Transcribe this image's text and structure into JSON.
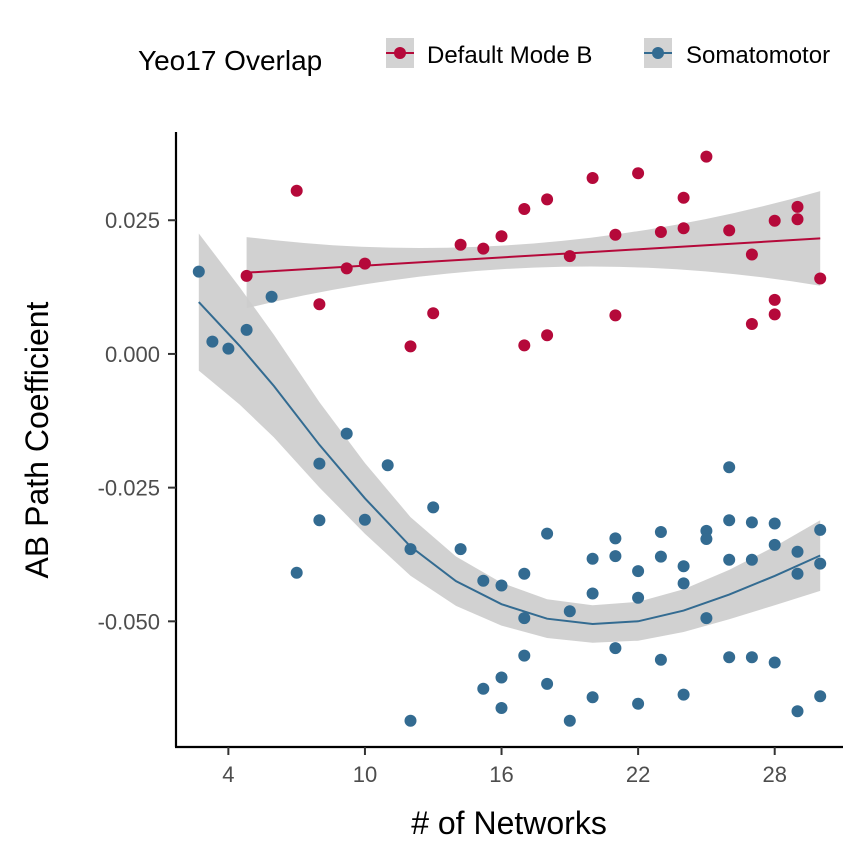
{
  "chart_data": {
    "type": "scatter",
    "xlabel": "# of Networks",
    "ylabel": "AB Path Coefficient",
    "xlim": [
      1.7,
      31.0
    ],
    "ylim": [
      -0.0735,
      0.0415
    ],
    "xticks": [
      4,
      10,
      16,
      22,
      28
    ],
    "xtick_labels": [
      "4",
      "10",
      "16",
      "22",
      "28"
    ],
    "yticks": [
      0.025,
      0.0,
      -0.025,
      -0.05
    ],
    "ytick_labels": [
      "0.025",
      "0.000",
      "-0.025",
      "-0.050"
    ],
    "grid": false,
    "legend": {
      "title": "Yeo17 Overlap",
      "position": "top",
      "entries": [
        "Default Mode B",
        "Somatomotor"
      ]
    },
    "series": [
      {
        "name": "Default Mode B",
        "color": "#b5093a",
        "points": [
          [
            4.8,
            0.0146
          ],
          [
            7.0,
            0.0305
          ],
          [
            8.0,
            0.0093
          ],
          [
            9.2,
            0.016
          ],
          [
            10.0,
            0.0169
          ],
          [
            12.0,
            0.0014
          ],
          [
            13.0,
            0.0076
          ],
          [
            14.2,
            0.0204
          ],
          [
            15.2,
            0.0197
          ],
          [
            16.0,
            0.022
          ],
          [
            17.0,
            0.0271
          ],
          [
            17.0,
            0.0016
          ],
          [
            18.0,
            0.0289
          ],
          [
            18.0,
            0.0035
          ],
          [
            19.0,
            0.0183
          ],
          [
            20.0,
            0.0329
          ],
          [
            21.0,
            0.0223
          ],
          [
            21.0,
            0.0072
          ],
          [
            22.0,
            0.0338
          ],
          [
            23.0,
            0.0228
          ],
          [
            24.0,
            0.0292
          ],
          [
            24.0,
            0.0235
          ],
          [
            25.0,
            0.0369
          ],
          [
            26.0,
            0.0231
          ],
          [
            27.0,
            0.0186
          ],
          [
            27.0,
            0.0056
          ],
          [
            28.0,
            0.0249
          ],
          [
            28.0,
            0.0101
          ],
          [
            28.0,
            0.0074
          ],
          [
            29.0,
            0.0275
          ],
          [
            29.0,
            0.0252
          ],
          [
            30.0,
            0.0141
          ]
        ],
        "trend": {
          "from": 4.8,
          "to": 30.0,
          "y_start": 0.0152,
          "y_end": 0.0216
        }
      },
      {
        "name": "Somatomotor",
        "color": "#336b91",
        "points": [
          [
            2.7,
            0.0154
          ],
          [
            3.3,
            0.0023
          ],
          [
            4.0,
            0.001
          ],
          [
            4.8,
            0.0045
          ],
          [
            5.9,
            0.0107
          ],
          [
            7.0,
            -0.0409
          ],
          [
            8.0,
            -0.0205
          ],
          [
            8.0,
            -0.0311
          ],
          [
            9.2,
            -0.0149
          ],
          [
            10.0,
            -0.031
          ],
          [
            11.0,
            -0.0208
          ],
          [
            12.0,
            -0.0365
          ],
          [
            12.0,
            -0.0686
          ],
          [
            13.0,
            -0.0287
          ],
          [
            14.2,
            -0.0365
          ],
          [
            15.2,
            -0.0424
          ],
          [
            15.2,
            -0.0626
          ],
          [
            16.0,
            -0.0433
          ],
          [
            16.0,
            -0.0605
          ],
          [
            16.0,
            -0.0662
          ],
          [
            17.0,
            -0.0411
          ],
          [
            17.0,
            -0.0494
          ],
          [
            17.0,
            -0.0564
          ],
          [
            18.0,
            -0.0336
          ],
          [
            18.0,
            -0.0617
          ],
          [
            19.0,
            -0.0481
          ],
          [
            19.0,
            -0.0686
          ],
          [
            20.0,
            -0.0383
          ],
          [
            20.0,
            -0.0448
          ],
          [
            20.0,
            -0.0642
          ],
          [
            21.0,
            -0.0345
          ],
          [
            21.0,
            -0.0378
          ],
          [
            21.0,
            -0.055
          ],
          [
            22.0,
            -0.0406
          ],
          [
            22.0,
            -0.0456
          ],
          [
            22.0,
            -0.0654
          ],
          [
            23.0,
            -0.0333
          ],
          [
            23.0,
            -0.0379
          ],
          [
            23.0,
            -0.0572
          ],
          [
            24.0,
            -0.0397
          ],
          [
            24.0,
            -0.0429
          ],
          [
            24.0,
            -0.0637
          ],
          [
            25.0,
            -0.0331
          ],
          [
            25.0,
            -0.0346
          ],
          [
            25.0,
            -0.0494
          ],
          [
            26.0,
            -0.0212
          ],
          [
            26.0,
            -0.0311
          ],
          [
            26.0,
            -0.0385
          ],
          [
            26.0,
            -0.0567
          ],
          [
            27.0,
            -0.0315
          ],
          [
            27.0,
            -0.0385
          ],
          [
            27.0,
            -0.0567
          ],
          [
            28.0,
            -0.0317
          ],
          [
            28.0,
            -0.0357
          ],
          [
            28.0,
            -0.0577
          ],
          [
            29.0,
            -0.037
          ],
          [
            29.0,
            -0.0411
          ],
          [
            29.0,
            -0.0668
          ],
          [
            30.0,
            -0.0329
          ],
          [
            30.0,
            -0.0392
          ],
          [
            30.0,
            -0.064
          ]
        ],
        "trend": {
          "x": [
            2.7,
            4.5,
            6.0,
            8.0,
            10.0,
            12.0,
            14.0,
            16.0,
            18.0,
            20.0,
            22.0,
            24.0,
            26.0,
            28.0,
            30.0
          ],
          "y": [
            0.0097,
            0.0015,
            -0.006,
            -0.017,
            -0.027,
            -0.036,
            -0.0425,
            -0.0468,
            -0.0495,
            -0.0505,
            -0.05,
            -0.048,
            -0.045,
            -0.0415,
            -0.0377
          ]
        }
      }
    ]
  }
}
